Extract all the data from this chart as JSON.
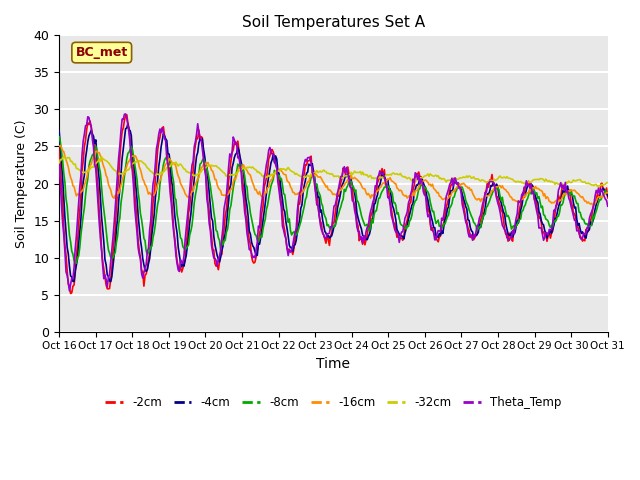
{
  "title": "Soil Temperatures Set A",
  "xlabel": "Time",
  "ylabel": "Soil Temperature (C)",
  "ylim": [
    0,
    40
  ],
  "annotation_text": "BC_met",
  "annotation_color": "#8B0000",
  "annotation_bg": "#FFFF99",
  "series_colors": {
    "-2cm": "#FF0000",
    "-4cm": "#00008B",
    "-8cm": "#00AA00",
    "-16cm": "#FF8C00",
    "-32cm": "#CCCC00",
    "Theta_Temp": "#9900CC"
  },
  "x_tick_labels": [
    "Oct 16",
    "Oct 17",
    "Oct 18",
    "Oct 19",
    "Oct 20",
    "Oct 21",
    "Oct 22",
    "Oct 23",
    "Oct 24",
    "Oct 25",
    "Oct 26",
    "Oct 27",
    "Oct 28",
    "Oct 29",
    "Oct 30",
    "Oct 31"
  ],
  "background_color": "#E8E8E8",
  "grid_color": "#FFFFFF",
  "n_points": 480,
  "n_days": 15
}
